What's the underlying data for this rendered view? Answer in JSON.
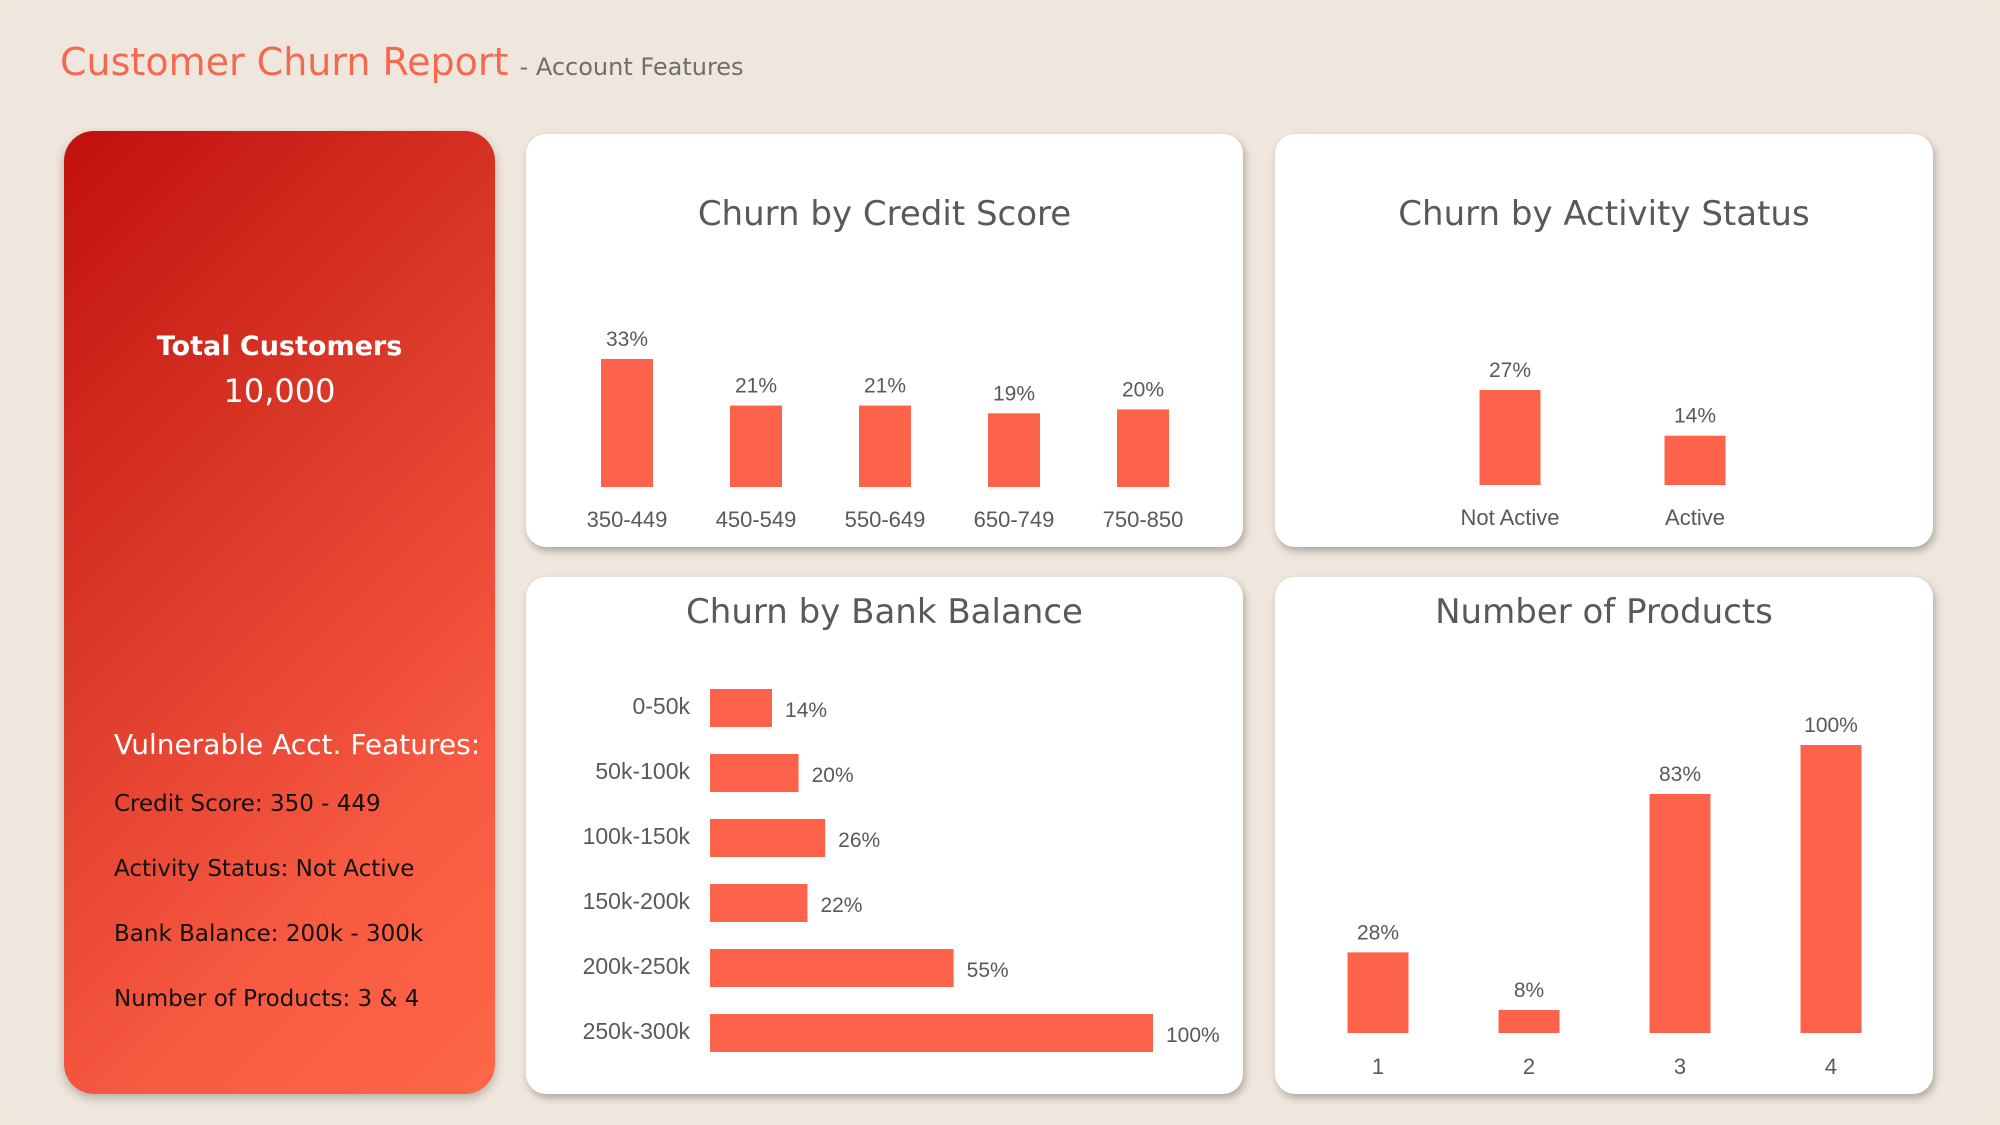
{
  "header": {
    "title": "Customer Churn Report",
    "subtitle": "- Account Features"
  },
  "summary": {
    "total_label": "Total Customers",
    "total_value": "10,000",
    "vulnerable_heading": "Vulnerable Acct. Features:",
    "features": [
      "Credit Score: 350 - 449",
      "Activity Status: Not Active",
      "Bank Balance: 200k - 300k",
      "Number of Products: 3 & 4"
    ]
  },
  "colors": {
    "bar": "#fd634a",
    "label": "#595959",
    "panel_gradient_start": "#c1100d",
    "panel_gradient_end": "#fd6747"
  },
  "chart_data": [
    {
      "type": "bar",
      "title": "Churn by Credit Score",
      "categories": [
        "350-449",
        "450-549",
        "550-649",
        "650-749",
        "750-850"
      ],
      "values": [
        33,
        21,
        21,
        19,
        20
      ],
      "value_labels": [
        "33%",
        "21%",
        "21%",
        "19%",
        "20%"
      ],
      "unit": "%",
      "ylim": [
        0,
        33
      ],
      "legend": "none",
      "grid": false
    },
    {
      "type": "bar",
      "title": "Churn by Activity Status",
      "categories": [
        "Not Active",
        "Active"
      ],
      "values": [
        27,
        14
      ],
      "value_labels": [
        "27%",
        "14%"
      ],
      "unit": "%",
      "ylim": [
        0,
        27
      ],
      "legend": "none",
      "grid": false
    },
    {
      "type": "bar",
      "orientation": "horizontal",
      "title": "Churn by Bank Balance",
      "categories": [
        "0-50k",
        "50k-100k",
        "100k-150k",
        "150k-200k",
        "200k-250k",
        "250k-300k"
      ],
      "values": [
        14,
        20,
        26,
        22,
        55,
        100
      ],
      "value_labels": [
        "14%",
        "20%",
        "26%",
        "22%",
        "55%",
        "100%"
      ],
      "unit": "%",
      "xlim": [
        0,
        100
      ],
      "legend": "none",
      "grid": false
    },
    {
      "type": "bar",
      "title": "Number of Products",
      "categories": [
        "1",
        "2",
        "3",
        "4"
      ],
      "values": [
        28,
        8,
        83,
        100
      ],
      "value_labels": [
        "28%",
        "8%",
        "83%",
        "100%"
      ],
      "unit": "%",
      "ylim": [
        0,
        100
      ],
      "legend": "none",
      "grid": false
    }
  ]
}
